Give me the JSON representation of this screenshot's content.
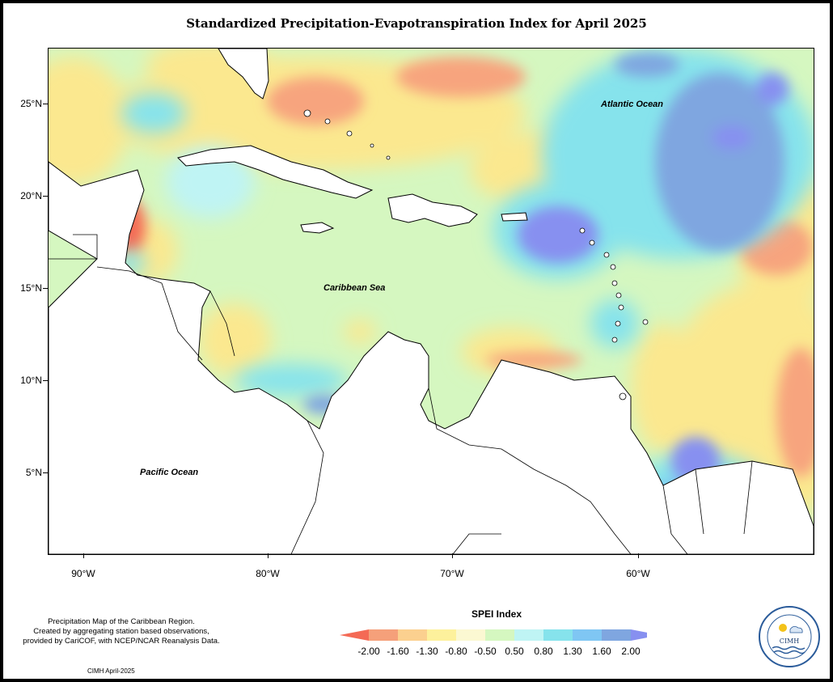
{
  "title": "Standardized Precipitation-Evapotranspiration Index for April 2025",
  "labels": {
    "atlantic": "Atlantic Ocean",
    "caribbean": "Caribbean Sea",
    "pacific": "Pacific Ocean"
  },
  "lat_ticks": [
    "25°N",
    "20°N",
    "15°N",
    "10°N",
    "5°N"
  ],
  "lon_ticks": [
    "90°W",
    "80°W",
    "70°W",
    "60°W"
  ],
  "footnote": {
    "line1": "Precipitation Map of the Caribbean Region.",
    "line2": "Created by aggregating station based observations,",
    "line3": "provided by CariCOF, with NCEP/NCAR Reanalysis Data."
  },
  "credit": "CIMH April-2025",
  "legend": {
    "title": "SPEI Index",
    "values": [
      "-2.00",
      "-1.60",
      "-1.30",
      "-0.80",
      "-0.50",
      "0.50",
      "0.80",
      "1.30",
      "1.60",
      "2.00"
    ],
    "colors": [
      "#f46a55",
      "#f5a07a",
      "#fbd08f",
      "#fdf19c",
      "#fbf8d2",
      "#d5f7c0",
      "#bff4f4",
      "#86e3ec",
      "#7fc6f3",
      "#7fa6e0",
      "#8790f0"
    ]
  },
  "logo_text": "CIMH"
}
